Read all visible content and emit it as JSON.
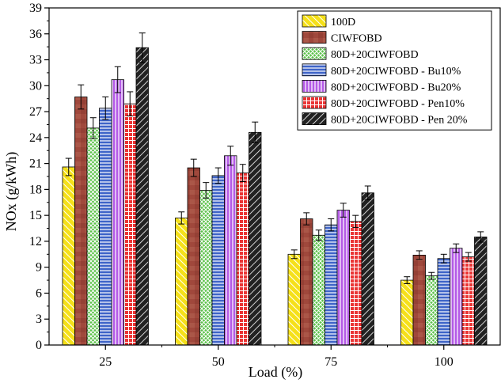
{
  "chart_data": {
    "type": "bar",
    "xlabel": "Load (%)",
    "ylabel": "NOx (g/kWh)",
    "ylim": [
      0,
      39
    ],
    "yticks": [
      0,
      3,
      6,
      9,
      12,
      15,
      18,
      21,
      24,
      27,
      30,
      33,
      36,
      39
    ],
    "categories": [
      "25",
      "50",
      "75",
      "100"
    ],
    "legend_position": "top-right",
    "series": [
      {
        "name": "100D",
        "values": [
          20.6,
          14.7,
          10.5,
          7.5
        ],
        "errors": [
          1.0,
          0.7,
          0.5,
          0.4
        ],
        "color": "#f5e01a",
        "pattern": "diag-left"
      },
      {
        "name": "CIWFOBD",
        "values": [
          28.7,
          20.5,
          14.6,
          10.4
        ],
        "errors": [
          1.4,
          1.0,
          0.7,
          0.5
        ],
        "color": "#a0483c",
        "pattern": "brick"
      },
      {
        "name": "80D+20CIWFOBD",
        "values": [
          25.1,
          17.9,
          12.7,
          8.0
        ],
        "errors": [
          1.2,
          0.9,
          0.6,
          0.4
        ],
        "color": "#5cc24a",
        "pattern": "crosshatch"
      },
      {
        "name": "80D+20CIWFOBD - Bu10%",
        "values": [
          27.4,
          19.6,
          13.9,
          10.0
        ],
        "errors": [
          1.3,
          0.9,
          0.7,
          0.5
        ],
        "color": "#3e64c8",
        "pattern": "hlines"
      },
      {
        "name": "80D+20CIWFOBD - Bu20%",
        "values": [
          30.7,
          21.9,
          15.6,
          11.2
        ],
        "errors": [
          1.5,
          1.1,
          0.8,
          0.5
        ],
        "color": "#b45ae6",
        "pattern": "vlines"
      },
      {
        "name": "80D+20CIWFOBD - Pen10%",
        "values": [
          27.9,
          19.9,
          14.3,
          10.2
        ],
        "errors": [
          1.4,
          1.0,
          0.7,
          0.5
        ],
        "color": "#ea3434",
        "pattern": "grid"
      },
      {
        "name": "80D+20CIWFOBD - Pen 20%",
        "values": [
          34.4,
          24.6,
          17.6,
          12.5
        ],
        "errors": [
          1.7,
          1.2,
          0.8,
          0.6
        ],
        "color": "#222222",
        "pattern": "diag-right"
      }
    ]
  }
}
